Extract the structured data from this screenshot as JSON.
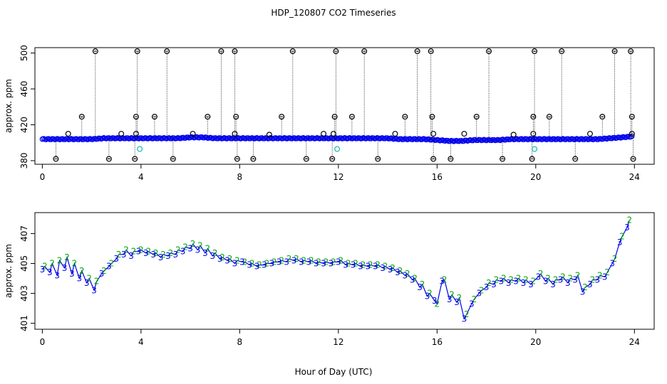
{
  "chart_data": [
    {
      "type": "scatter",
      "title": "HDP_120807  CO2 Timeseries",
      "xlabel": "",
      "ylabel": "approx. ppm",
      "xlim": [
        -0.3,
        24.8
      ],
      "ylim": [
        376,
        506
      ],
      "xticks": [
        "0",
        "4",
        "8",
        "12",
        "16",
        "20",
        "24"
      ],
      "yticks": [
        "380",
        "420",
        "460",
        "500"
      ],
      "grid": false,
      "colors": {
        "main": "#0000ee",
        "flag": "#000000",
        "teal": "#22bbbb",
        "green": "#00aa00"
      },
      "baseline": {
        "x": [
          0.0,
          0.5,
          1.0,
          1.5,
          2.0,
          2.5,
          3.0,
          3.5,
          4.0,
          4.5,
          5.0,
          5.5,
          6.0,
          6.5,
          7.0,
          7.5,
          8.0,
          8.5,
          9.0,
          9.5,
          10.0,
          10.5,
          11.0,
          11.5,
          12.0,
          12.5,
          13.0,
          13.5,
          14.0,
          14.5,
          15.0,
          15.5,
          16.0,
          16.5,
          17.0,
          17.5,
          18.0,
          18.5,
          19.0,
          19.5,
          20.0,
          20.5,
          21.0,
          21.5,
          22.0,
          22.5,
          23.0,
          23.5,
          23.9
        ],
        "y": [
          404,
          404,
          404,
          404,
          404,
          405,
          405,
          405,
          405,
          405,
          405,
          405,
          406,
          406,
          405,
          405,
          405,
          405,
          405,
          405,
          405,
          405,
          405,
          405,
          405,
          405,
          405,
          405,
          405,
          404,
          404,
          404,
          403,
          402,
          402,
          403,
          403,
          403,
          404,
          404,
          404,
          404,
          404,
          404,
          404,
          404,
          405,
          406,
          407
        ]
      },
      "spikes_high": [
        2.15,
        3.85,
        5.05,
        7.25,
        7.8,
        10.15,
        11.9,
        13.05,
        15.2,
        15.75,
        18.1,
        19.95,
        21.05,
        23.2,
        23.85
      ],
      "spikes_mid": [
        1.6,
        3.8,
        4.55,
        6.7,
        7.85,
        9.7,
        11.85,
        12.55,
        14.7,
        15.8,
        17.6,
        19.9,
        20.55,
        22.7,
        23.9
      ],
      "spikes_low": [
        0.55,
        2.7,
        3.75,
        5.3,
        7.9,
        8.55,
        10.7,
        11.75,
        13.6,
        15.85,
        16.55,
        18.65,
        19.85,
        21.6,
        23.95
      ],
      "small_marks": [
        {
          "x": 1.05,
          "y": 410
        },
        {
          "x": 3.2,
          "y": 410
        },
        {
          "x": 3.8,
          "y": 410
        },
        {
          "x": 6.1,
          "y": 410
        },
        {
          "x": 7.8,
          "y": 410
        },
        {
          "x": 9.2,
          "y": 409
        },
        {
          "x": 11.4,
          "y": 410
        },
        {
          "x": 11.8,
          "y": 410
        },
        {
          "x": 14.3,
          "y": 410
        },
        {
          "x": 15.85,
          "y": 410
        },
        {
          "x": 17.1,
          "y": 410
        },
        {
          "x": 19.1,
          "y": 409
        },
        {
          "x": 19.9,
          "y": 410
        },
        {
          "x": 22.2,
          "y": 410
        },
        {
          "x": 23.9,
          "y": 410
        }
      ],
      "teal_marks": [
        {
          "x": 3.95,
          "y": 393
        },
        {
          "x": 11.95,
          "y": 393
        },
        {
          "x": 19.95,
          "y": 393
        }
      ]
    },
    {
      "type": "line",
      "title": "",
      "xlabel": "Hour of Day (UTC)",
      "ylabel": "approx. ppm",
      "xlim": [
        -0.3,
        24.8
      ],
      "ylim": [
        400.6,
        408.4
      ],
      "xticks": [
        "0",
        "4",
        "8",
        "12",
        "16",
        "20",
        "24"
      ],
      "yticks": [
        "401",
        "403",
        "405",
        "407"
      ],
      "grid": false,
      "marker_labels": {
        "a": "3",
        "b": "2"
      },
      "series": [
        {
          "x": [
            0.0,
            0.3,
            0.6,
            0.9,
            1.2,
            1.5,
            1.8,
            2.1,
            2.4,
            2.7,
            3.0,
            3.3,
            3.6,
            3.9,
            4.2,
            4.5,
            4.8,
            5.1,
            5.4,
            5.7,
            6.0,
            6.3,
            6.6,
            6.9,
            7.2,
            7.5,
            7.8,
            8.1,
            8.4,
            8.7,
            9.0,
            9.3,
            9.6,
            9.9,
            10.2,
            10.5,
            10.8,
            11.1,
            11.4,
            11.7,
            12.0,
            12.3,
            12.6,
            12.9,
            13.2,
            13.5,
            13.8,
            14.1,
            14.4,
            14.7,
            15.0,
            15.3,
            15.6,
            15.9,
            16.2,
            16.5,
            16.8,
            17.1,
            17.4,
            17.7,
            18.0,
            18.3,
            18.6,
            18.9,
            19.2,
            19.5,
            19.8,
            20.1,
            20.4,
            20.7,
            21.0,
            21.3,
            21.6,
            21.9,
            22.2,
            22.5,
            22.8,
            23.1,
            23.4,
            23.7
          ],
          "y": [
            404.6,
            404.4,
            404.2,
            404.7,
            404.3,
            404.0,
            403.7,
            403.2,
            404.3,
            404.8,
            405.3,
            405.6,
            405.5,
            405.8,
            405.7,
            405.6,
            405.4,
            405.5,
            405.6,
            405.8,
            406.0,
            405.9,
            405.7,
            405.5,
            405.3,
            405.2,
            405.0,
            405.1,
            404.9,
            404.8,
            404.9,
            405.0,
            405.1,
            405.1,
            405.2,
            405.1,
            405.1,
            405.0,
            405.0,
            405.0,
            405.1,
            404.9,
            404.9,
            404.8,
            404.8,
            404.8,
            404.7,
            404.6,
            404.4,
            404.2,
            403.9,
            403.4,
            402.8,
            402.5,
            403.8,
            402.6,
            402.4,
            401.3,
            402.3,
            403.0,
            403.4,
            403.6,
            403.8,
            403.7,
            403.8,
            403.7,
            403.6,
            404.1,
            403.8,
            403.6,
            403.9,
            403.7,
            403.9,
            403.1,
            403.6,
            403.9,
            404.1,
            405.0,
            406.4,
            407.4
          ]
        },
        {
          "x": [
            0.1,
            0.4,
            0.7,
            1.0,
            1.3,
            1.6,
            1.9,
            2.2,
            2.5,
            2.8,
            3.1,
            3.4,
            3.7,
            4.0,
            4.3,
            4.6,
            4.9,
            5.2,
            5.5,
            5.8,
            6.1,
            6.4,
            6.7,
            7.0,
            7.3,
            7.6,
            7.9,
            8.2,
            8.5,
            8.8,
            9.1,
            9.4,
            9.7,
            10.0,
            10.3,
            10.6,
            10.9,
            11.2,
            11.5,
            11.8,
            12.1,
            12.4,
            12.7,
            13.0,
            13.3,
            13.6,
            13.9,
            14.2,
            14.5,
            14.8,
            15.1,
            15.4,
            15.7,
            16.0,
            16.3,
            16.6,
            16.9,
            17.2,
            17.5,
            17.8,
            18.1,
            18.4,
            18.7,
            19.0,
            19.3,
            19.6,
            19.9,
            20.2,
            20.5,
            20.8,
            21.1,
            21.4,
            21.7,
            22.0,
            22.3,
            22.6,
            22.9,
            23.2,
            23.5,
            23.8
          ],
          "y": [
            404.8,
            405.0,
            405.2,
            405.4,
            405.0,
            404.5,
            404.0,
            403.8,
            404.5,
            405.0,
            405.6,
            405.9,
            405.8,
            405.9,
            405.8,
            405.7,
            405.6,
            405.7,
            405.9,
            406.1,
            406.3,
            406.2,
            406.0,
            405.7,
            405.4,
            405.3,
            405.2,
            405.1,
            405.0,
            404.9,
            405.0,
            405.1,
            405.2,
            405.3,
            405.3,
            405.2,
            405.2,
            405.1,
            405.1,
            405.1,
            405.2,
            405.0,
            405.0,
            404.9,
            404.9,
            404.9,
            404.8,
            404.7,
            404.5,
            404.3,
            404.0,
            403.6,
            403.0,
            402.3,
            403.9,
            402.9,
            402.7,
            401.6,
            402.6,
            403.2,
            403.7,
            403.9,
            404.0,
            403.9,
            404.0,
            403.9,
            403.8,
            404.3,
            404.0,
            403.9,
            404.1,
            404.0,
            404.2,
            403.4,
            403.9,
            404.2,
            404.4,
            405.3,
            406.8,
            407.9
          ]
        }
      ]
    }
  ]
}
